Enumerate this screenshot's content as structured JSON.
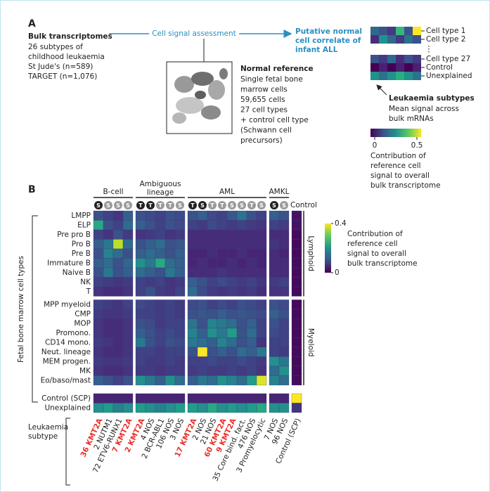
{
  "panel_a": {
    "label": "A",
    "bulk": {
      "title": "Bulk transcriptomes",
      "lines": [
        "26 subtypes of",
        "childhood leukaemia",
        "St Jude's (n=589)",
        "TARGET (n=1,076)"
      ]
    },
    "assessment": "Cell signal assessment",
    "correlate": [
      "Putative normal",
      "cell correlate of",
      "infant ALL"
    ],
    "reference": {
      "title": "Normal reference",
      "lines": [
        "Single fetal bone",
        "marrow cells",
        "59,655 cells",
        "27 cell types",
        "+ control cell type",
        "(Schwann cell",
        "precursors)"
      ]
    },
    "schematic_rows": [
      "Cell type 1",
      "Cell type 2",
      "Cell type 27",
      "Control",
      "Unexplained"
    ],
    "ellipsis": "⋮",
    "caption_title": "Leukaemia subtypes",
    "caption": [
      "Mean signal across",
      "bulk mRNAs"
    ],
    "colorbar_ticks": [
      0,
      0.5
    ],
    "colorbar_label": [
      "Contribution of",
      "reference cell",
      "signal to overall",
      "bulk transcriptome"
    ]
  },
  "chart_data": {
    "type": "heatmap",
    "label": "B",
    "y_label": "Fetal bone marrow cell types",
    "x_label": [
      "Leukaemia",
      "subtype"
    ],
    "clim": [
      0,
      0.4
    ],
    "colorbar_ticks": [
      0,
      0.4
    ],
    "colorbar_label": [
      "Contribution of",
      "reference cell",
      "signal to overall",
      "bulk transcriptome"
    ],
    "highlight_color": "#e8322b",
    "column_groups": [
      {
        "name": "B-cell",
        "columns": [
          {
            "label": "36 KMT2A",
            "icon": "S",
            "infant": true,
            "highlight": true
          },
          {
            "label": "2 NUTM1",
            "icon": "S",
            "infant": false,
            "highlight": false
          },
          {
            "label": "72 ETV6-RUNX1",
            "icon": "S",
            "infant": false,
            "highlight": false
          },
          {
            "label": "7 KMT2A",
            "icon": "S",
            "infant": false,
            "highlight": true
          }
        ]
      },
      {
        "name": "Ambiguous lineage",
        "columns": [
          {
            "label": "2 KMT2A",
            "icon": "T",
            "infant": true,
            "highlight": true
          },
          {
            "label": "4 NOS",
            "icon": "T",
            "infant": true,
            "highlight": false
          },
          {
            "label": "2 BCR-ABL1",
            "icon": "T",
            "infant": false,
            "highlight": false
          },
          {
            "label": "106 NOS",
            "icon": "T",
            "infant": false,
            "highlight": false
          },
          {
            "label": "3 NOS",
            "icon": "S",
            "infant": false,
            "highlight": false
          }
        ]
      },
      {
        "name": "AML",
        "columns": [
          {
            "label": "17 KMT2A",
            "icon": "T",
            "infant": true,
            "highlight": true
          },
          {
            "label": "2 NOS",
            "icon": "S",
            "infant": true,
            "highlight": false
          },
          {
            "label": "21 NOS",
            "icon": "T",
            "infant": false,
            "highlight": false
          },
          {
            "label": "60 KMT2A",
            "icon": "T",
            "infant": false,
            "highlight": true
          },
          {
            "label": "9 KMT2A",
            "icon": "S",
            "infant": false,
            "highlight": true
          },
          {
            "label": "35 Core bind. fact.",
            "icon": "S",
            "infant": false,
            "highlight": false
          },
          {
            "label": "476 NOS",
            "icon": "T",
            "infant": false,
            "highlight": false
          },
          {
            "label": "3 Promyelocytic",
            "icon": "S",
            "infant": false,
            "highlight": false
          }
        ]
      },
      {
        "name": "AMKL",
        "columns": [
          {
            "label": "7 NOS",
            "icon": "S",
            "infant": true,
            "highlight": false
          },
          {
            "label": "96 NOS",
            "icon": "S",
            "infant": false,
            "highlight": false
          }
        ]
      },
      {
        "name": "Control",
        "columns": [
          {
            "label": "Control (SCP)",
            "icon": null,
            "infant": false,
            "highlight": false
          }
        ]
      }
    ],
    "row_groups": [
      {
        "name": "Lymphoid",
        "rows": [
          "LMPP",
          "ELP",
          "Pre pro B",
          "Pro B",
          "Pre B",
          "Immature B",
          "Naive B",
          "NK",
          "T"
        ]
      },
      {
        "name": "Myeloid",
        "rows": [
          "MPP myeloid",
          "CMP",
          "MOP",
          "Promono.",
          "CD14 mono.",
          "Neut. lineage",
          "MEM progen.",
          "MK",
          "Eo/baso/mast"
        ]
      },
      {
        "name": null,
        "rows": [
          "Control (SCP)",
          "Unexplained"
        ]
      }
    ],
    "values": [
      [
        0.1,
        0.08,
        0.06,
        0.12,
        0.1,
        0.09,
        0.08,
        0.1,
        0.09,
        0.1,
        0.12,
        0.09,
        0.08,
        0.11,
        0.15,
        0.1,
        0.08,
        0.12,
        0.1,
        0.02
      ],
      [
        0.24,
        0.1,
        0.08,
        0.14,
        0.12,
        0.1,
        0.08,
        0.1,
        0.09,
        0.08,
        0.07,
        0.09,
        0.08,
        0.07,
        0.08,
        0.07,
        0.06,
        0.08,
        0.07,
        0.02
      ],
      [
        0.08,
        0.06,
        0.1,
        0.07,
        0.06,
        0.07,
        0.08,
        0.06,
        0.07,
        0.05,
        0.05,
        0.05,
        0.05,
        0.05,
        0.05,
        0.05,
        0.05,
        0.05,
        0.05,
        0.01
      ],
      [
        0.12,
        0.16,
        0.36,
        0.14,
        0.1,
        0.12,
        0.14,
        0.1,
        0.11,
        0.05,
        0.05,
        0.05,
        0.05,
        0.05,
        0.05,
        0.05,
        0.05,
        0.06,
        0.05,
        0.01
      ],
      [
        0.1,
        0.18,
        0.14,
        0.1,
        0.12,
        0.14,
        0.12,
        0.1,
        0.12,
        0.04,
        0.04,
        0.05,
        0.04,
        0.04,
        0.05,
        0.04,
        0.04,
        0.05,
        0.04,
        0.01
      ],
      [
        0.12,
        0.14,
        0.1,
        0.13,
        0.2,
        0.16,
        0.24,
        0.14,
        0.12,
        0.04,
        0.05,
        0.04,
        0.04,
        0.05,
        0.04,
        0.05,
        0.04,
        0.05,
        0.05,
        0.01
      ],
      [
        0.1,
        0.16,
        0.1,
        0.12,
        0.14,
        0.12,
        0.1,
        0.16,
        0.12,
        0.05,
        0.05,
        0.05,
        0.06,
        0.05,
        0.05,
        0.05,
        0.05,
        0.05,
        0.05,
        0.01
      ],
      [
        0.08,
        0.07,
        0.06,
        0.07,
        0.08,
        0.07,
        0.08,
        0.06,
        0.07,
        0.12,
        0.1,
        0.08,
        0.09,
        0.08,
        0.07,
        0.08,
        0.06,
        0.07,
        0.08,
        0.01
      ],
      [
        0.06,
        0.05,
        0.05,
        0.06,
        0.08,
        0.1,
        0.07,
        0.06,
        0.08,
        0.14,
        0.09,
        0.07,
        0.06,
        0.07,
        0.06,
        0.07,
        0.05,
        0.06,
        0.06,
        0.01
      ],
      [
        0.08,
        0.07,
        0.06,
        0.08,
        0.09,
        0.08,
        0.07,
        0.08,
        0.07,
        0.09,
        0.1,
        0.08,
        0.09,
        0.08,
        0.1,
        0.09,
        0.08,
        0.1,
        0.09,
        0.01
      ],
      [
        0.07,
        0.06,
        0.06,
        0.07,
        0.08,
        0.08,
        0.07,
        0.08,
        0.07,
        0.1,
        0.11,
        0.1,
        0.12,
        0.1,
        0.11,
        0.1,
        0.09,
        0.12,
        0.1,
        0.01
      ],
      [
        0.06,
        0.05,
        0.05,
        0.06,
        0.1,
        0.09,
        0.07,
        0.08,
        0.08,
        0.15,
        0.1,
        0.18,
        0.16,
        0.14,
        0.1,
        0.12,
        0.08,
        0.1,
        0.08,
        0.01
      ],
      [
        0.06,
        0.05,
        0.05,
        0.06,
        0.12,
        0.1,
        0.08,
        0.09,
        0.08,
        0.18,
        0.12,
        0.2,
        0.16,
        0.22,
        0.1,
        0.14,
        0.08,
        0.09,
        0.08,
        0.01
      ],
      [
        0.07,
        0.06,
        0.05,
        0.06,
        0.16,
        0.1,
        0.08,
        0.1,
        0.09,
        0.16,
        0.14,
        0.12,
        0.18,
        0.14,
        0.1,
        0.12,
        0.06,
        0.08,
        0.08,
        0.01
      ],
      [
        0.06,
        0.05,
        0.05,
        0.06,
        0.08,
        0.08,
        0.07,
        0.08,
        0.08,
        0.1,
        0.4,
        0.1,
        0.12,
        0.1,
        0.14,
        0.12,
        0.16,
        0.08,
        0.07,
        0.01
      ],
      [
        0.07,
        0.06,
        0.06,
        0.07,
        0.08,
        0.07,
        0.07,
        0.08,
        0.07,
        0.08,
        0.08,
        0.09,
        0.08,
        0.08,
        0.09,
        0.08,
        0.07,
        0.2,
        0.16,
        0.01
      ],
      [
        0.06,
        0.05,
        0.05,
        0.06,
        0.07,
        0.07,
        0.06,
        0.07,
        0.07,
        0.07,
        0.08,
        0.07,
        0.07,
        0.08,
        0.07,
        0.08,
        0.06,
        0.14,
        0.2,
        0.01
      ],
      [
        0.12,
        0.1,
        0.08,
        0.1,
        0.2,
        0.16,
        0.12,
        0.2,
        0.14,
        0.12,
        0.16,
        0.14,
        0.2,
        0.18,
        0.14,
        0.22,
        0.38,
        0.18,
        0.14,
        0.01
      ],
      [
        0.04,
        0.04,
        0.04,
        0.04,
        0.04,
        0.04,
        0.04,
        0.04,
        0.04,
        0.04,
        0.04,
        0.04,
        0.04,
        0.04,
        0.04,
        0.04,
        0.04,
        0.04,
        0.04,
        0.4
      ],
      [
        0.2,
        0.22,
        0.18,
        0.2,
        0.22,
        0.2,
        0.18,
        0.2,
        0.22,
        0.22,
        0.2,
        0.24,
        0.2,
        0.22,
        0.2,
        0.22,
        0.24,
        0.2,
        0.2,
        0.06
      ]
    ]
  }
}
